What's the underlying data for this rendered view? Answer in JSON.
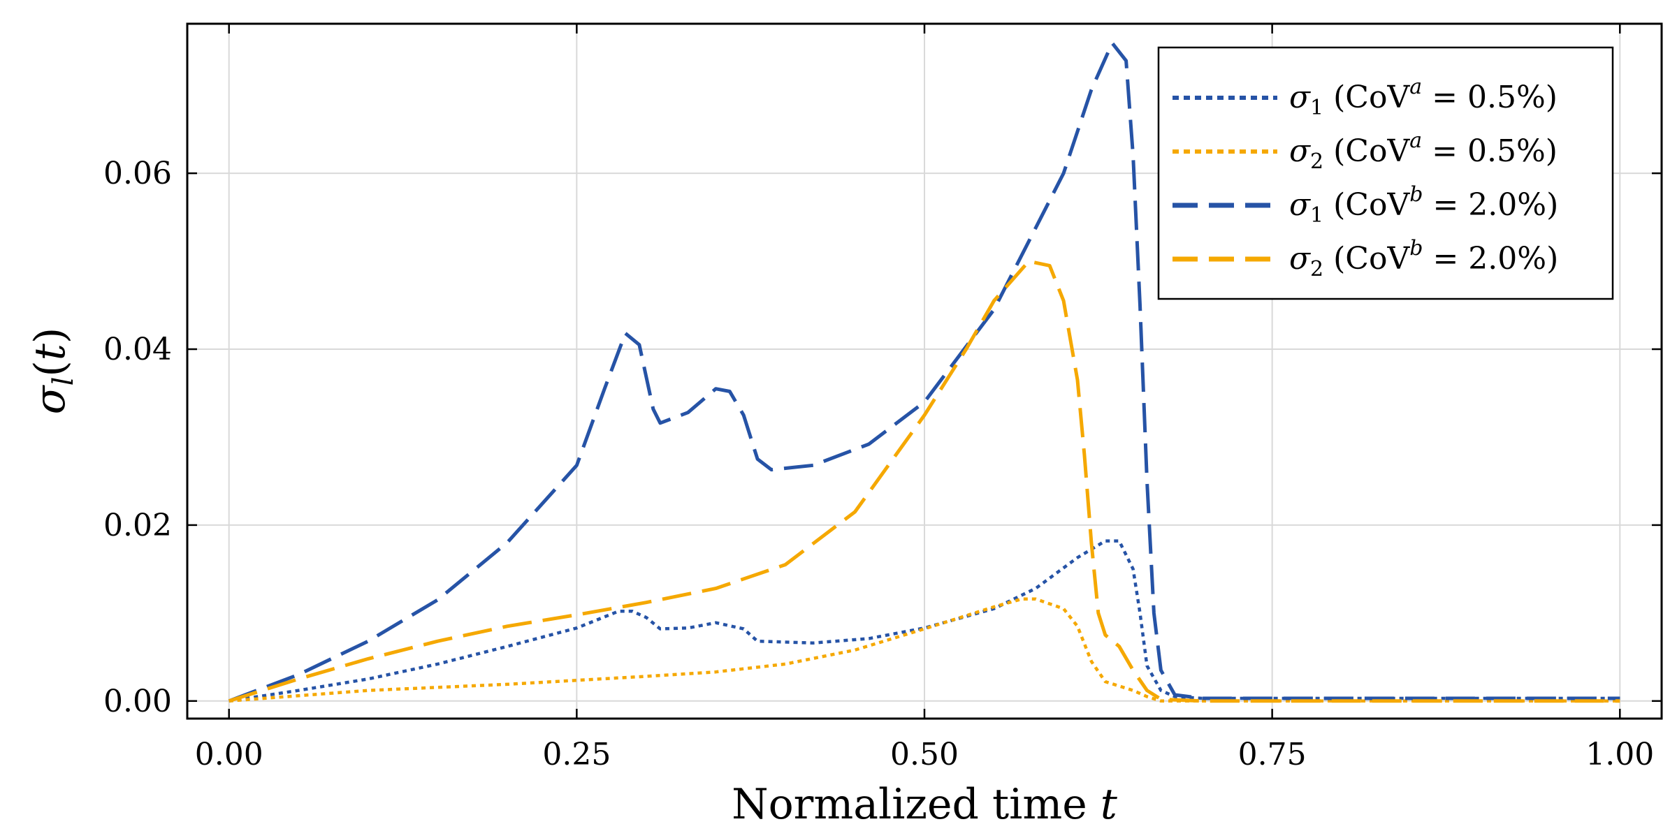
{
  "chart_data": {
    "type": "line",
    "xlabel": "Normalized time t",
    "ylabel": "σ_l(t)",
    "xlim": [
      -0.03,
      1.03
    ],
    "ylim": [
      -0.002,
      0.077
    ],
    "grid": true,
    "legend_position": "top-right",
    "x_ticks": [
      0.0,
      0.25,
      0.5,
      0.75,
      1.0
    ],
    "x_tick_labels": [
      "0.00",
      "0.25",
      "0.50",
      "0.75",
      "1.00"
    ],
    "y_ticks": [
      0.0,
      0.02,
      0.04,
      0.06
    ],
    "y_tick_labels": [
      "0.00",
      "0.02",
      "0.04",
      "0.06"
    ],
    "series": [
      {
        "name": "σ1 (CoV^a = 0.5%)",
        "legend": {
          "sym": "σ",
          "sub": "1",
          "pre": " (CoV",
          "sup": "a",
          "post": " = 0.5%)"
        },
        "color": "#2653a6",
        "style": "dotted",
        "points": [
          [
            0,
            0
          ],
          [
            0.05,
            0.0012
          ],
          [
            0.1,
            0.0025
          ],
          [
            0.15,
            0.0042
          ],
          [
            0.2,
            0.0062
          ],
          [
            0.25,
            0.0083
          ],
          [
            0.28,
            0.0102
          ],
          [
            0.29,
            0.0102
          ],
          [
            0.3,
            0.0095
          ],
          [
            0.31,
            0.0082
          ],
          [
            0.33,
            0.0083
          ],
          [
            0.35,
            0.0089
          ],
          [
            0.37,
            0.0082
          ],
          [
            0.38,
            0.0068
          ],
          [
            0.42,
            0.0066
          ],
          [
            0.46,
            0.0071
          ],
          [
            0.5,
            0.0083
          ],
          [
            0.55,
            0.0105
          ],
          [
            0.58,
            0.0128
          ],
          [
            0.61,
            0.0163
          ],
          [
            0.63,
            0.0182
          ],
          [
            0.64,
            0.0182
          ],
          [
            0.65,
            0.015
          ],
          [
            0.655,
            0.01
          ],
          [
            0.66,
            0.004
          ],
          [
            0.67,
            0.0012
          ],
          [
            0.68,
            0.0005
          ],
          [
            0.7,
            0.0003
          ],
          [
            0.75,
            0.0003
          ],
          [
            0.8,
            0.0003
          ],
          [
            0.9,
            0.0003
          ],
          [
            1.0,
            0.0003
          ]
        ]
      },
      {
        "name": "σ2 (CoV^a = 0.5%)",
        "legend": {
          "sym": "σ",
          "sub": "2",
          "pre": " (CoV",
          "sup": "a",
          "post": " = 0.5%)"
        },
        "color": "#f5a800",
        "style": "dotted",
        "points": [
          [
            0,
            0
          ],
          [
            0.1,
            0.0012
          ],
          [
            0.2,
            0.0019
          ],
          [
            0.3,
            0.0028
          ],
          [
            0.35,
            0.0033
          ],
          [
            0.4,
            0.0042
          ],
          [
            0.45,
            0.0058
          ],
          [
            0.5,
            0.0082
          ],
          [
            0.55,
            0.0107
          ],
          [
            0.57,
            0.0116
          ],
          [
            0.58,
            0.0116
          ],
          [
            0.6,
            0.0105
          ],
          [
            0.61,
            0.0085
          ],
          [
            0.62,
            0.0045
          ],
          [
            0.63,
            0.0022
          ],
          [
            0.65,
            0.0012
          ],
          [
            0.66,
            0.0005
          ],
          [
            0.67,
            0.0
          ],
          [
            0.75,
            0.0
          ],
          [
            0.85,
            0.0
          ],
          [
            1.0,
            0.0
          ]
        ]
      },
      {
        "name": "σ1 (CoV^b = 2.0%)",
        "legend": {
          "sym": "σ",
          "sub": "1",
          "pre": " (CoV",
          "sup": "b",
          "post": " = 2.0%)"
        },
        "color": "#2653a6",
        "style": "dashed",
        "points": [
          [
            0,
            0
          ],
          [
            0.025,
            0.0015
          ],
          [
            0.05,
            0.003
          ],
          [
            0.1,
            0.0068
          ],
          [
            0.15,
            0.0115
          ],
          [
            0.2,
            0.018
          ],
          [
            0.25,
            0.0268
          ],
          [
            0.27,
            0.0355
          ],
          [
            0.285,
            0.0418
          ],
          [
            0.295,
            0.0405
          ],
          [
            0.305,
            0.0332
          ],
          [
            0.31,
            0.0316
          ],
          [
            0.33,
            0.0328
          ],
          [
            0.35,
            0.0355
          ],
          [
            0.36,
            0.0352
          ],
          [
            0.37,
            0.0325
          ],
          [
            0.38,
            0.0275
          ],
          [
            0.39,
            0.0263
          ],
          [
            0.42,
            0.0268
          ],
          [
            0.46,
            0.0292
          ],
          [
            0.5,
            0.034
          ],
          [
            0.55,
            0.0445
          ],
          [
            0.6,
            0.06
          ],
          [
            0.62,
            0.0695
          ],
          [
            0.635,
            0.0748
          ],
          [
            0.645,
            0.0728
          ],
          [
            0.65,
            0.062
          ],
          [
            0.655,
            0.045
          ],
          [
            0.66,
            0.025
          ],
          [
            0.665,
            0.01
          ],
          [
            0.67,
            0.0035
          ],
          [
            0.68,
            0.0007
          ],
          [
            0.7,
            0.0003
          ],
          [
            0.8,
            0.0003
          ],
          [
            0.9,
            0.0003
          ],
          [
            1.0,
            0.0003
          ]
        ]
      },
      {
        "name": "σ2 (CoV^b = 2.0%)",
        "legend": {
          "sym": "σ",
          "sub": "2",
          "pre": " (CoV",
          "sup": "b",
          "post": " = 2.0%)"
        },
        "color": "#f5a800",
        "style": "dashed",
        "points": [
          [
            0,
            0
          ],
          [
            0.05,
            0.0025
          ],
          [
            0.1,
            0.0048
          ],
          [
            0.15,
            0.0068
          ],
          [
            0.2,
            0.0085
          ],
          [
            0.25,
            0.0098
          ],
          [
            0.3,
            0.0112
          ],
          [
            0.35,
            0.0128
          ],
          [
            0.4,
            0.0155
          ],
          [
            0.45,
            0.0215
          ],
          [
            0.5,
            0.0325
          ],
          [
            0.53,
            0.04
          ],
          [
            0.55,
            0.0455
          ],
          [
            0.575,
            0.05
          ],
          [
            0.59,
            0.0495
          ],
          [
            0.6,
            0.0455
          ],
          [
            0.61,
            0.0365
          ],
          [
            0.615,
            0.028
          ],
          [
            0.62,
            0.018
          ],
          [
            0.625,
            0.01
          ],
          [
            0.63,
            0.0075
          ],
          [
            0.64,
            0.0062
          ],
          [
            0.65,
            0.0035
          ],
          [
            0.66,
            0.0012
          ],
          [
            0.67,
            0.0002
          ],
          [
            0.7,
            0.0
          ],
          [
            0.8,
            0.0
          ],
          [
            1.0,
            0.0
          ]
        ]
      }
    ]
  }
}
